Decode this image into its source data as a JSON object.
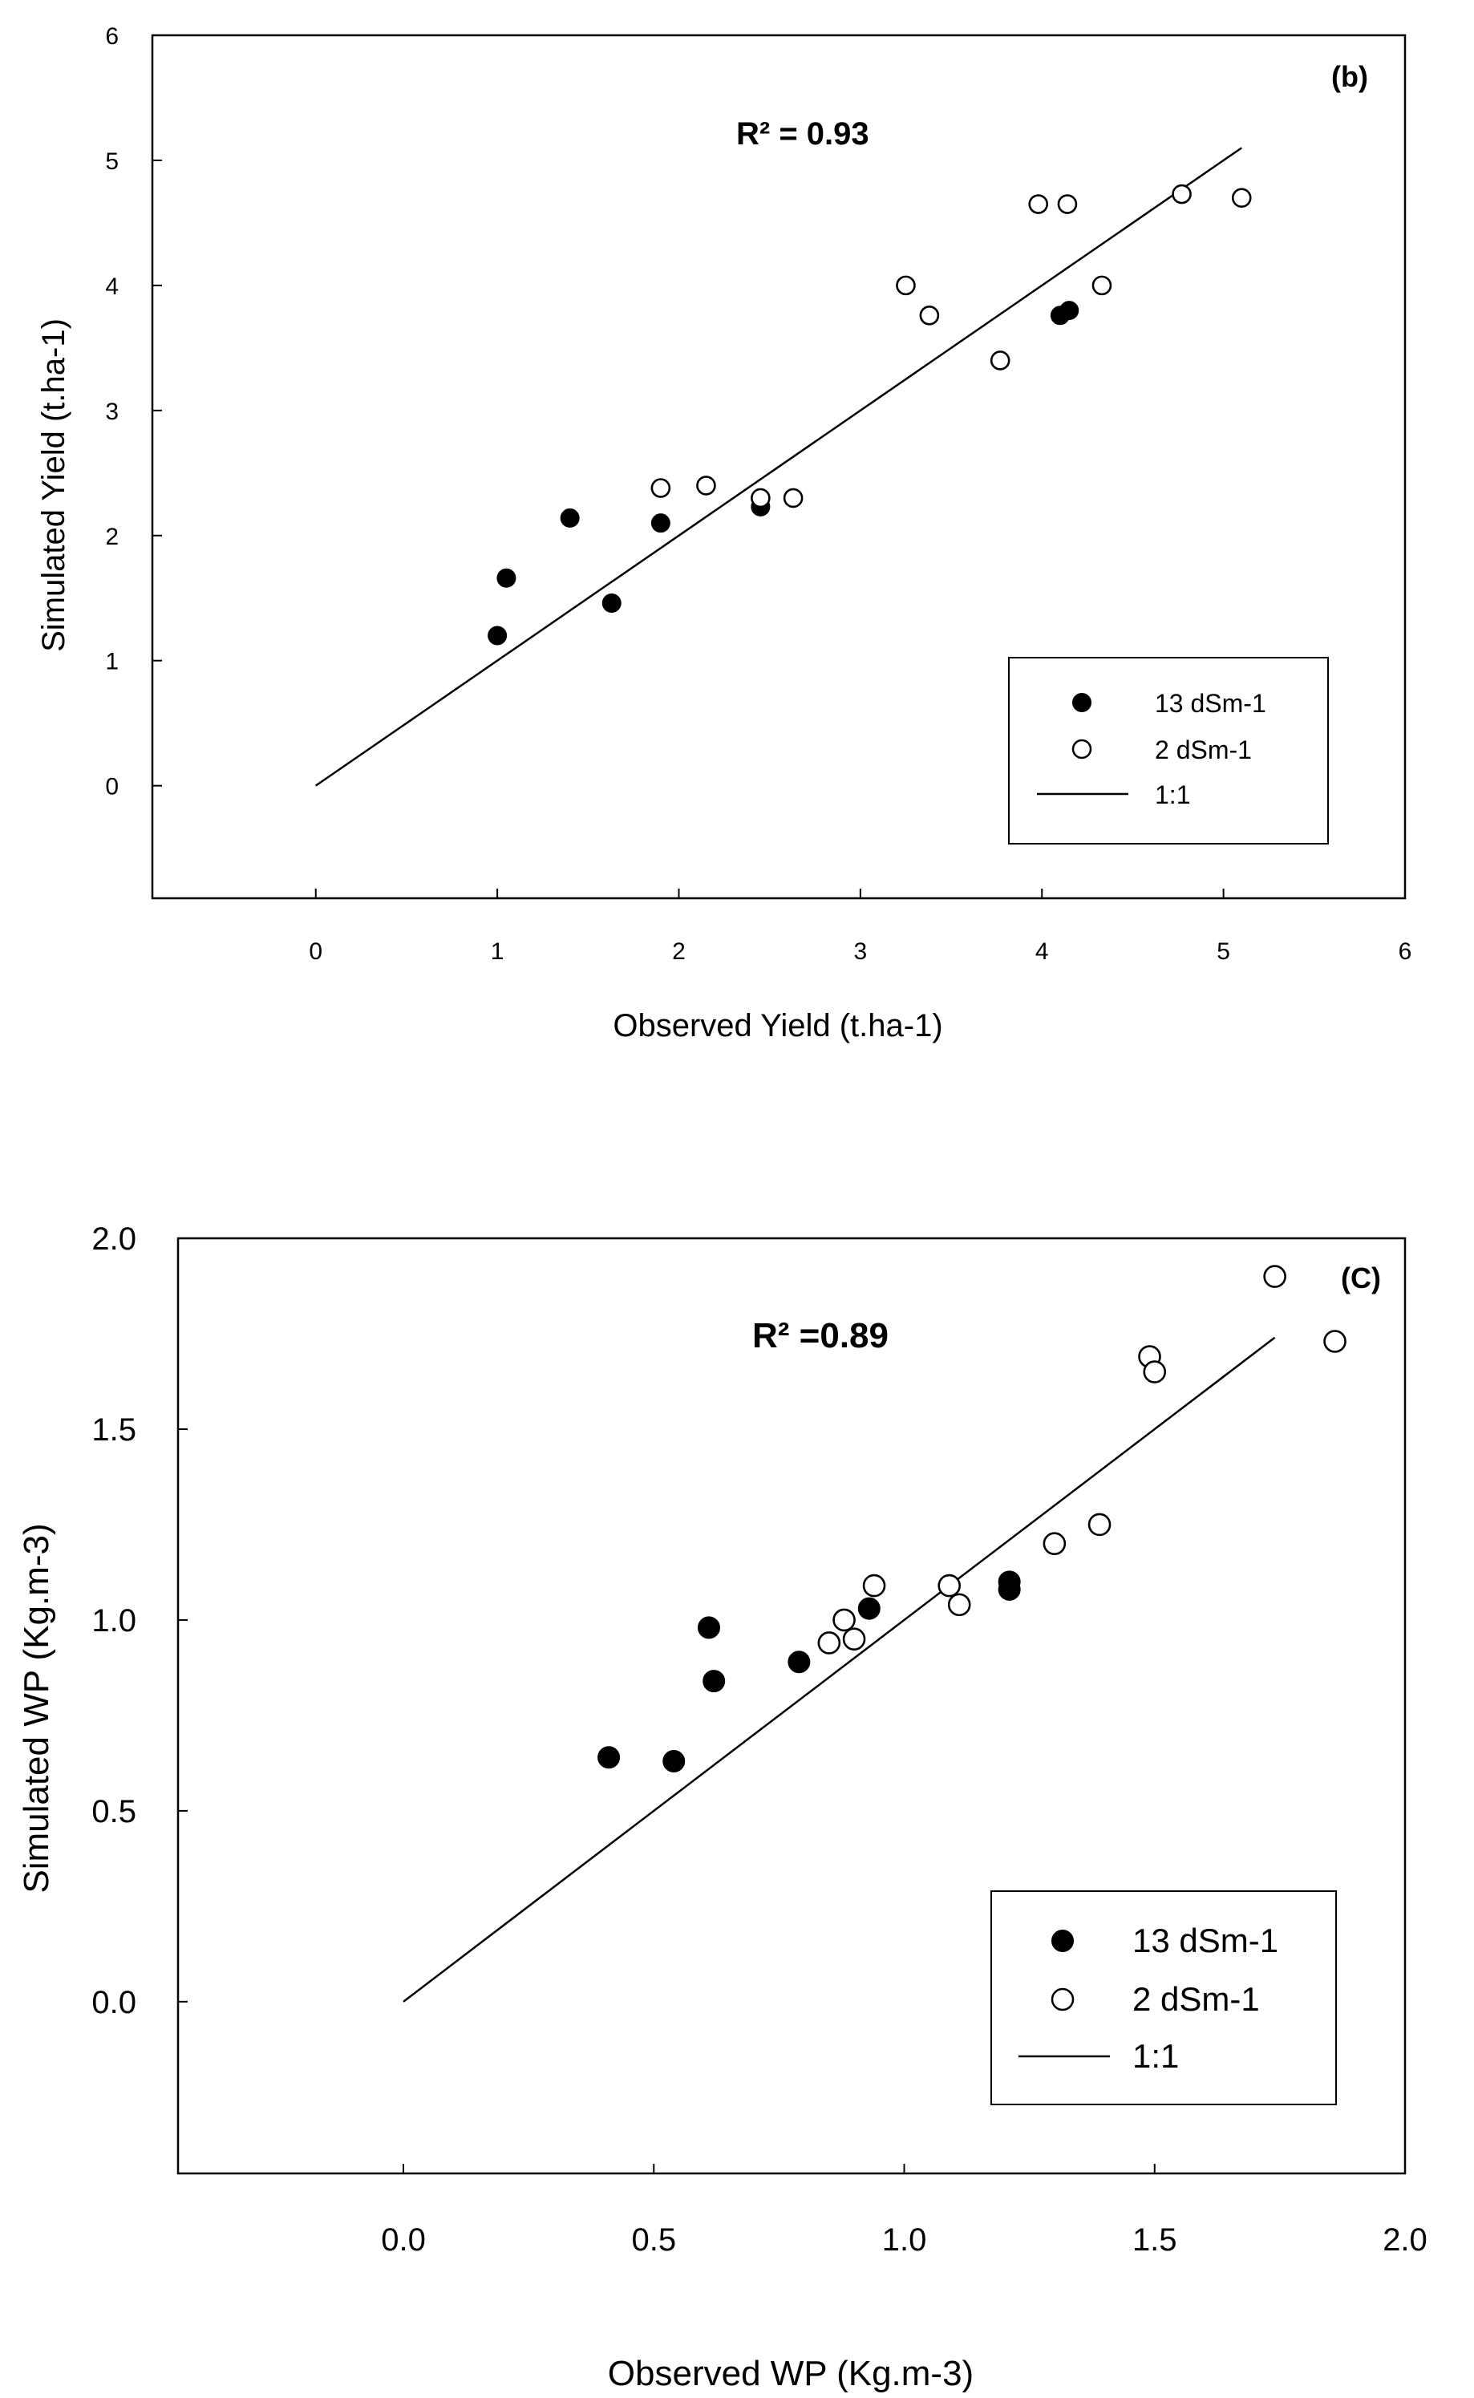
{
  "chart_data": [
    {
      "type": "scatter",
      "panel_label": "(b)",
      "annotation": "R²  = 0.93",
      "xlabel": "Observed Yield (t.ha-1)",
      "ylabel": "Simulated Yield (t.ha-1)",
      "xlim": [
        -0.9,
        6
      ],
      "ylim": [
        -0.9,
        6
      ],
      "xticks": [
        0,
        1,
        2,
        3,
        4,
        5,
        6
      ],
      "yticks": [
        0,
        1,
        2,
        3,
        4,
        5,
        6
      ],
      "tick_labels_x": [
        "0",
        "1",
        "2",
        "3",
        "4",
        "5",
        "6"
      ],
      "tick_labels_y": [
        "0",
        "1",
        "2",
        "3",
        "4",
        "5",
        "6"
      ],
      "legend": {
        "position": "bottom-right",
        "entries": [
          "13 dSm-1",
          "2 dSm-1",
          "1:1"
        ]
      },
      "series": [
        {
          "name": "13 dSm-1",
          "marker": "filled-circle",
          "points": [
            [
              1.0,
              1.2
            ],
            [
              1.05,
              1.66
            ],
            [
              1.4,
              2.14
            ],
            [
              1.63,
              1.46
            ],
            [
              1.9,
              2.1
            ],
            [
              2.45,
              2.23
            ],
            [
              4.1,
              3.76
            ],
            [
              4.15,
              3.8
            ]
          ]
        },
        {
          "name": "2 dSm-1",
          "marker": "open-circle",
          "points": [
            [
              1.9,
              2.38
            ],
            [
              2.15,
              2.4
            ],
            [
              2.45,
              2.3
            ],
            [
              2.63,
              2.3
            ],
            [
              3.25,
              4.0
            ],
            [
              3.38,
              3.76
            ],
            [
              3.77,
              3.4
            ],
            [
              3.98,
              4.65
            ],
            [
              4.14,
              4.65
            ],
            [
              4.33,
              4.0
            ],
            [
              4.77,
              4.73
            ],
            [
              5.1,
              4.7
            ]
          ]
        },
        {
          "name": "1:1",
          "marker": "line",
          "points": [
            [
              0,
              0
            ],
            [
              5.1,
              5.1
            ]
          ]
        }
      ]
    },
    {
      "type": "scatter",
      "panel_label": "(C)",
      "annotation": "R²  =0.89",
      "xlabel": "Observed WP (Kg.m-3)",
      "ylabel": "Simulated WP (Kg.m-3)",
      "xlim": [
        -0.45,
        2.0
      ],
      "ylim": [
        -0.45,
        2.0
      ],
      "xticks": [
        0.0,
        0.5,
        1.0,
        1.5,
        2.0
      ],
      "yticks": [
        0.0,
        0.5,
        1.0,
        1.5,
        2.0
      ],
      "tick_labels_x": [
        "0.0",
        "0.5",
        "1.0",
        "1.5",
        "2.0"
      ],
      "tick_labels_y": [
        "0.0",
        "0.5",
        "1.0",
        "1.5",
        "2.0"
      ],
      "legend": {
        "position": "bottom-right",
        "entries": [
          "13 dSm-1",
          "2 dSm-1",
          "1:1"
        ]
      },
      "series": [
        {
          "name": "13 dSm-1",
          "marker": "filled-circle",
          "points": [
            [
              0.41,
              0.64
            ],
            [
              0.54,
              0.63
            ],
            [
              0.61,
              0.98
            ],
            [
              0.62,
              0.84
            ],
            [
              0.79,
              0.89
            ],
            [
              0.93,
              1.03
            ],
            [
              1.21,
              1.1
            ],
            [
              1.21,
              1.08
            ]
          ]
        },
        {
          "name": "2 dSm-1",
          "marker": "open-circle",
          "points": [
            [
              0.85,
              0.94
            ],
            [
              0.88,
              1.0
            ],
            [
              0.9,
              0.95
            ],
            [
              0.94,
              1.09
            ],
            [
              1.09,
              1.09
            ],
            [
              1.11,
              1.04
            ],
            [
              1.3,
              1.2
            ],
            [
              1.39,
              1.25
            ],
            [
              1.49,
              1.69
            ],
            [
              1.5,
              1.65
            ],
            [
              1.74,
              1.9
            ],
            [
              1.86,
              1.73
            ]
          ]
        },
        {
          "name": "1:1",
          "marker": "line",
          "points": [
            [
              0,
              0
            ],
            [
              1.74,
              1.74
            ]
          ]
        }
      ]
    }
  ]
}
